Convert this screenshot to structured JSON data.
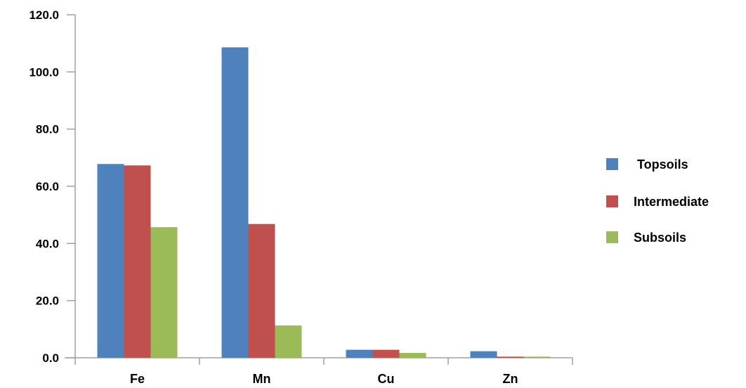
{
  "chart_data": {
    "type": "bar",
    "title": "",
    "xlabel": "",
    "ylabel": "",
    "categories": [
      "Fe",
      "Mn",
      "Cu",
      "Zn"
    ],
    "series": [
      {
        "name": "Topsoils",
        "color": "#4f81bd",
        "values": [
          67.8,
          108.6,
          2.8,
          2.3
        ]
      },
      {
        "name": "Intermediate",
        "color": "#c0504d",
        "values": [
          67.3,
          46.8,
          2.8,
          0.4
        ]
      },
      {
        "name": "Subsoils",
        "color": "#9bbb59",
        "values": [
          45.7,
          11.3,
          1.7,
          0.4
        ]
      }
    ],
    "ylim": [
      0,
      120
    ],
    "yticks": [
      "0.0",
      "20.0",
      "40.0",
      "60.0",
      "80.0",
      "100.0",
      "120.0"
    ],
    "grid": false,
    "legend_position": "right"
  }
}
